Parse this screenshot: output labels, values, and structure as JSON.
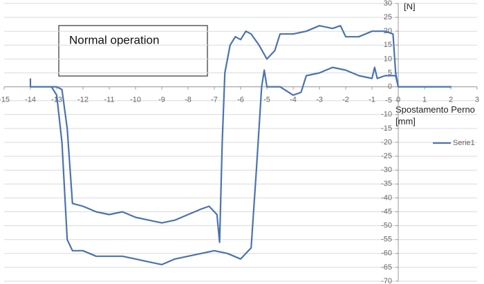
{
  "chart_data": {
    "type": "line",
    "annotation": "Normal operation",
    "x_label": "Spostamento Perno [mm]",
    "y_label": "[N]",
    "x": [
      -14,
      -14,
      -13.5,
      -13,
      -12.8,
      -12.6,
      -12.4,
      -12,
      -11.5,
      -11,
      -10.5,
      -10,
      -9.5,
      -9,
      -8.5,
      -8,
      -7.5,
      -7.2,
      -6.9,
      -6.8,
      -6.7,
      -6.6,
      -6.4,
      -6.2,
      -6,
      -5.8,
      -5.6,
      -5.3,
      -5,
      -4.7,
      -4.5,
      -4,
      -3.5,
      -3,
      -2.5,
      -2.2,
      -2,
      -1.5,
      -1,
      -0.5,
      -0.2,
      -0.1,
      0,
      1,
      2,
      0.1,
      0,
      -0.1,
      -0.5,
      -0.8,
      -0.9,
      -1,
      -1.5,
      -2,
      -2.5,
      -3,
      -3.5,
      -3.7,
      -4,
      -4.5,
      -5,
      -5.1,
      -5.2,
      -5.4,
      -5.6,
      -6,
      -6.5,
      -7,
      -7.5,
      -8,
      -8.5,
      -9,
      -9.5,
      -10,
      -10.5,
      -11,
      -11.5,
      -12,
      -12.4,
      -12.6,
      -12.8,
      -13,
      -13.2
    ],
    "series": [
      {
        "name": "Serie1",
        "color": "#4a72b0",
        "values": [
          3,
          0,
          0,
          0,
          -1,
          -15,
          -42,
          -43,
          -45,
          -46,
          -45,
          -47,
          -48,
          -49,
          -48,
          -46,
          -44,
          -43,
          -46,
          -56,
          -20,
          5,
          15,
          18,
          17,
          20,
          19,
          15,
          10,
          13,
          19,
          19,
          20,
          22,
          21,
          22,
          18,
          18,
          20,
          20,
          19,
          5,
          0,
          0,
          0,
          0,
          0,
          4,
          4,
          3,
          7,
          3,
          4,
          6,
          7,
          5,
          4,
          -2,
          -3,
          0,
          0,
          6,
          0,
          -30,
          -58,
          -62,
          -60,
          -59,
          -60,
          -61,
          -62,
          -64,
          -63,
          -62,
          -61,
          -61,
          -61,
          -59,
          -59,
          -55,
          -20,
          -3,
          0
        ]
      }
    ],
    "xlim": [
      -15,
      3
    ],
    "ylim": [
      -70,
      30
    ],
    "xticks": [
      -15,
      -14,
      -13,
      -12,
      -11,
      -10,
      -9,
      -8,
      -7,
      -6,
      -5,
      -4,
      -3,
      -2,
      -1,
      0,
      1,
      2,
      3
    ],
    "yticks": [
      -70,
      -65,
      -60,
      -55,
      -50,
      -45,
      -40,
      -35,
      -30,
      -25,
      -20,
      -15,
      -10,
      -5,
      0,
      5,
      10,
      15,
      20,
      25,
      30
    ],
    "grid": true,
    "legend": "right"
  }
}
